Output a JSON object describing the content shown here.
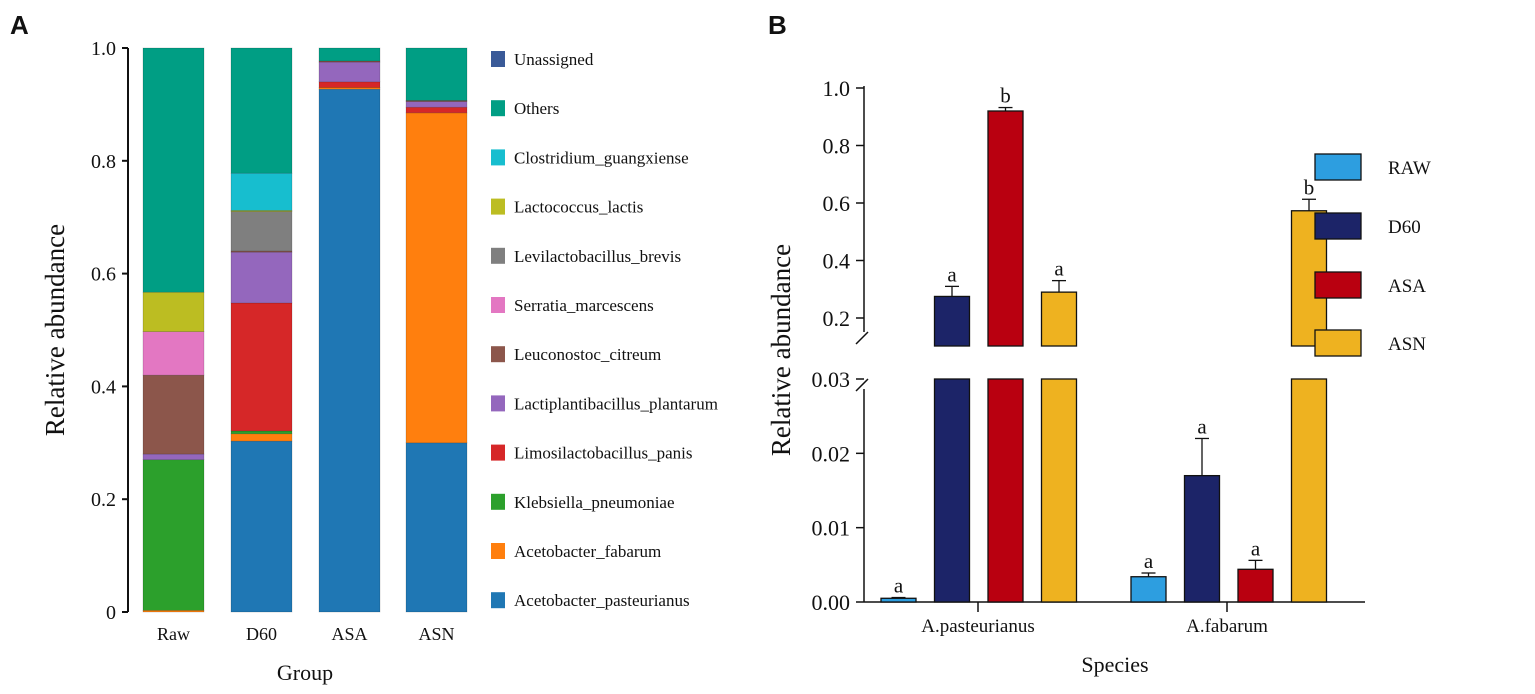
{
  "chart_data": [
    {
      "panel_label": "A",
      "type": "bar",
      "stacked": true,
      "xlabel": "Group",
      "ylabel": "Relative abundance",
      "ylim": [
        0,
        1
      ],
      "yticks": [
        "0",
        "0.2",
        "0.4",
        "0.6",
        "0.8",
        "1.0"
      ],
      "categories": [
        "Raw",
        "D60",
        "ASA",
        "ASN"
      ],
      "legend_order": [
        "Unassigned",
        "Others",
        "Clostridium_guangxiense",
        "Lactococcus_lactis",
        "Levilactobacillus_brevis",
        "Serratia_marcescens",
        "Leuconostoc_citreum",
        "Lactiplantibacillus_plantarum",
        "Limosilactobacillus_panis",
        "Klebsiella_pneumoniae",
        "Acetobacter_fabarum",
        "Acetobacter_pasteurianus"
      ],
      "series": [
        {
          "name": "Acetobacter_pasteurianus",
          "color": "#1f77b4",
          "values": [
            0,
            0.303,
            0.927,
            0.3
          ]
        },
        {
          "name": "Acetobacter_fabarum",
          "color": "#ff7f0e",
          "values": [
            0.003,
            0.013,
            0.003,
            0.585
          ]
        },
        {
          "name": "Klebsiella_pneumoniae",
          "color": "#2ca02c",
          "values": [
            0.267,
            0.005,
            0,
            0
          ]
        },
        {
          "name": "Limosilactobacillus_panis",
          "color": "#d62728",
          "values": [
            0,
            0.227,
            0.01,
            0.01
          ]
        },
        {
          "name": "Lactiplantibacillus_plantarum",
          "color": "#9467bd",
          "values": [
            0.01,
            0.09,
            0.035,
            0.01
          ]
        },
        {
          "name": "Leuconostoc_citreum",
          "color": "#8c564b",
          "values": [
            0.14,
            0.002,
            0.002,
            0.002
          ]
        },
        {
          "name": "Serratia_marcescens",
          "color": "#e377c2",
          "values": [
            0.077,
            0,
            0,
            0
          ]
        },
        {
          "name": "Levilactobacillus_brevis",
          "color": "#7f7f7f",
          "values": [
            0,
            0.07,
            0,
            0
          ]
        },
        {
          "name": "Lactococcus_lactis",
          "color": "#bcbd22",
          "values": [
            0.07,
            0.002,
            0,
            0
          ]
        },
        {
          "name": "Clostridium_guangxiense",
          "color": "#17becf",
          "values": [
            0,
            0.066,
            0,
            0
          ]
        },
        {
          "name": "Others",
          "color": "#009e84",
          "values": [
            0.433,
            0.222,
            0.023,
            0.093
          ]
        },
        {
          "name": "Unassigned",
          "color": "#3a5a98",
          "values": [
            0,
            0,
            0,
            0
          ]
        }
      ]
    },
    {
      "panel_label": "B",
      "type": "bar",
      "xlabel": "Species",
      "ylabel": "Relative abundance",
      "axis_break": [
        0.03,
        0.1
      ],
      "yticks_lower": [
        "0.00",
        "0.01",
        "0.02",
        "0.03"
      ],
      "yticks_upper": [
        "0.2",
        "0.4",
        "0.6",
        "0.8",
        "1.0"
      ],
      "categories": [
        "A.pasteurianus",
        "A.fabarum"
      ],
      "series": [
        {
          "name": "RAW",
          "color": "#2d9ee0",
          "values": [
            0.0005,
            0.0034
          ],
          "errors": [
            0.0001,
            0.0005
          ],
          "letters": [
            "a",
            "a"
          ]
        },
        {
          "name": "D60",
          "color": "#1c2468",
          "values": [
            0.275,
            0.017
          ],
          "errors": [
            0.035,
            0.005
          ],
          "letters": [
            "a",
            "a"
          ]
        },
        {
          "name": "ASA",
          "color": "#b90010",
          "values": [
            0.92,
            0.0044
          ],
          "errors": [
            0.012,
            0.0012
          ],
          "letters": [
            "b",
            "a"
          ]
        },
        {
          "name": "ASN",
          "color": "#eeb220",
          "values": [
            0.29,
            0.573
          ],
          "errors": [
            0.04,
            0.04
          ],
          "letters": [
            "a",
            "b"
          ]
        }
      ]
    }
  ]
}
